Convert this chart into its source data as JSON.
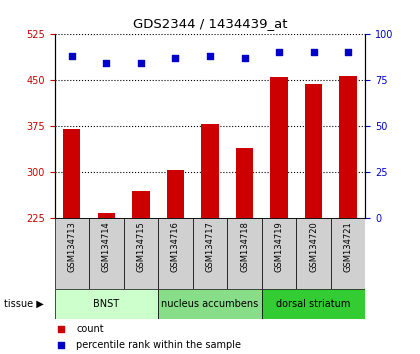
{
  "title": "GDS2344 / 1434439_at",
  "samples": [
    "GSM134713",
    "GSM134714",
    "GSM134715",
    "GSM134716",
    "GSM134717",
    "GSM134718",
    "GSM134719",
    "GSM134720",
    "GSM134721"
  ],
  "counts": [
    370,
    232,
    268,
    303,
    378,
    338,
    455,
    443,
    456
  ],
  "percentiles": [
    88,
    84,
    84,
    87,
    88,
    87,
    90,
    90,
    90
  ],
  "ylim_left": [
    225,
    525
  ],
  "ylim_right": [
    0,
    100
  ],
  "yticks_left": [
    225,
    300,
    375,
    450,
    525
  ],
  "yticks_right": [
    0,
    25,
    50,
    75,
    100
  ],
  "bar_color": "#cc0000",
  "dot_color": "#0000cc",
  "bar_width": 0.5,
  "tissue_groups": [
    {
      "label": "BNST",
      "start": 0,
      "end": 3,
      "color": "#ccffcc"
    },
    {
      "label": "nucleus accumbens",
      "start": 3,
      "end": 6,
      "color": "#88dd88"
    },
    {
      "label": "dorsal striatum",
      "start": 6,
      "end": 9,
      "color": "#33cc33"
    }
  ],
  "tissue_label": "tissue",
  "legend_count": "count",
  "legend_pct": "percentile rank within the sample",
  "sample_box_color": "#d0d0d0",
  "tick_label_color_left": "#cc0000",
  "tick_label_color_right": "#0000cc",
  "label_fontsize": 7,
  "sample_fontsize": 6
}
